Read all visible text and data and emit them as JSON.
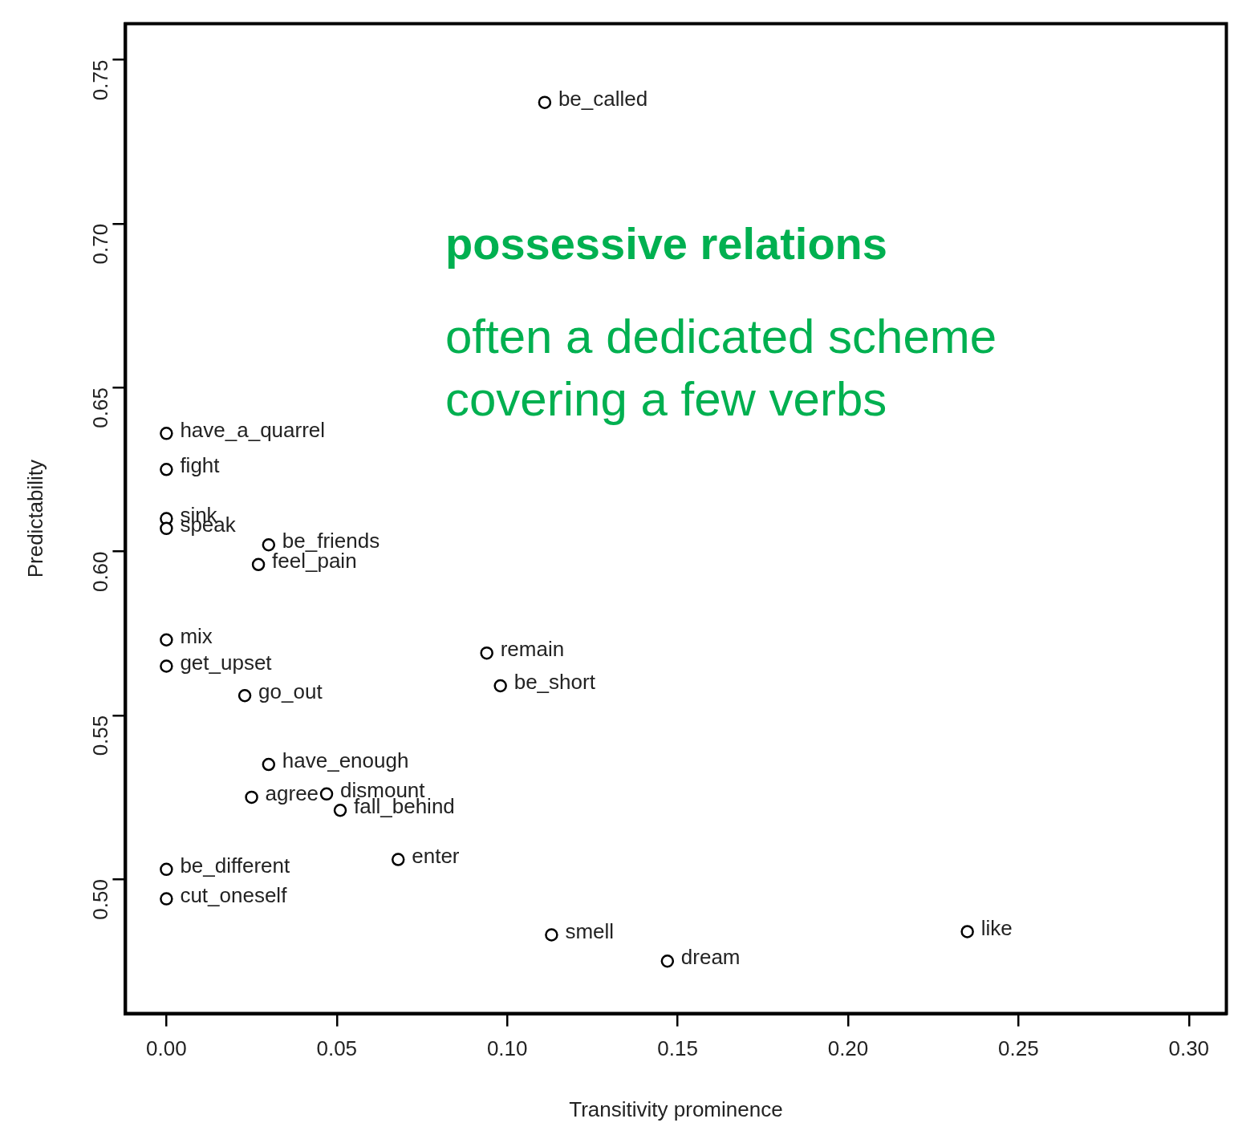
{
  "chart_data": {
    "type": "scatter",
    "xlabel": "Transitivity prominence",
    "ylabel": "Predictability",
    "xlim": [
      -0.012,
      0.311
    ],
    "ylim": [
      0.459,
      0.761
    ],
    "xticks": [
      {
        "value": 0,
        "label": "0.00"
      },
      {
        "value": 0.05,
        "label": "0.05"
      },
      {
        "value": 0.1,
        "label": "0.10"
      },
      {
        "value": 0.15,
        "label": "0.15"
      },
      {
        "value": 0.2,
        "label": "0.20"
      },
      {
        "value": 0.25,
        "label": "0.25"
      },
      {
        "value": 0.3,
        "label": "0.30"
      }
    ],
    "yticks": [
      {
        "value": 0.5,
        "label": "0.50"
      },
      {
        "value": 0.55,
        "label": "0.55"
      },
      {
        "value": 0.6,
        "label": "0.60"
      },
      {
        "value": 0.65,
        "label": "0.65"
      },
      {
        "value": 0.7,
        "label": "0.70"
      },
      {
        "value": 0.75,
        "label": "0.75"
      }
    ],
    "grid": false,
    "legend": false,
    "marker": "circle",
    "series": [
      {
        "color": "#000000",
        "x": [
          0.111,
          0,
          0,
          0,
          0,
          0.03,
          0.027,
          0,
          0,
          0.023,
          0.094,
          0.098,
          0.03,
          0.025,
          0.047,
          0.051,
          0.068,
          0,
          0,
          0.113,
          0.235,
          0.147
        ],
        "values": [
          0.737,
          0.636,
          0.625,
          0.61,
          0.607,
          0.602,
          0.596,
          0.573,
          0.565,
          0.556,
          0.569,
          0.559,
          0.535,
          0.525,
          0.526,
          0.521,
          0.506,
          0.503,
          0.494,
          0.483,
          0.484,
          0.475
        ]
      }
    ],
    "annotations": [
      {
        "text": "be_called",
        "x": 0.111,
        "y": 0.737
      },
      {
        "text": "have_a_quarrel",
        "x": 0,
        "y": 0.636
      },
      {
        "text": "fight",
        "x": 0,
        "y": 0.625
      },
      {
        "text": "sink",
        "x": 0,
        "y": 0.61
      },
      {
        "text": "speak",
        "x": 0,
        "y": 0.607
      },
      {
        "text": "be_friends",
        "x": 0.03,
        "y": 0.602
      },
      {
        "text": "feel_pain",
        "x": 0.027,
        "y": 0.596
      },
      {
        "text": "mix",
        "x": 0,
        "y": 0.573
      },
      {
        "text": "get_upset",
        "x": 0,
        "y": 0.565
      },
      {
        "text": "go_out",
        "x": 0.023,
        "y": 0.556
      },
      {
        "text": "remain",
        "x": 0.094,
        "y": 0.569
      },
      {
        "text": "be_short",
        "x": 0.098,
        "y": 0.559
      },
      {
        "text": "have_enough",
        "x": 0.03,
        "y": 0.535
      },
      {
        "text": "agree",
        "x": 0.025,
        "y": 0.525
      },
      {
        "text": "dismount",
        "x": 0.047,
        "y": 0.526
      },
      {
        "text": "fall_behind",
        "x": 0.051,
        "y": 0.521
      },
      {
        "text": "enter",
        "x": 0.068,
        "y": 0.506
      },
      {
        "text": "be_different",
        "x": 0,
        "y": 0.503
      },
      {
        "text": "cut_oneself",
        "x": 0,
        "y": 0.494
      },
      {
        "text": "smell",
        "x": 0.113,
        "y": 0.483
      },
      {
        "text": "like",
        "x": 0.235,
        "y": 0.484
      },
      {
        "text": "dream",
        "x": 0.147,
        "y": 0.475
      },
      "possessive relations",
      "often a dedicated scheme covering a few verbs"
    ]
  }
}
